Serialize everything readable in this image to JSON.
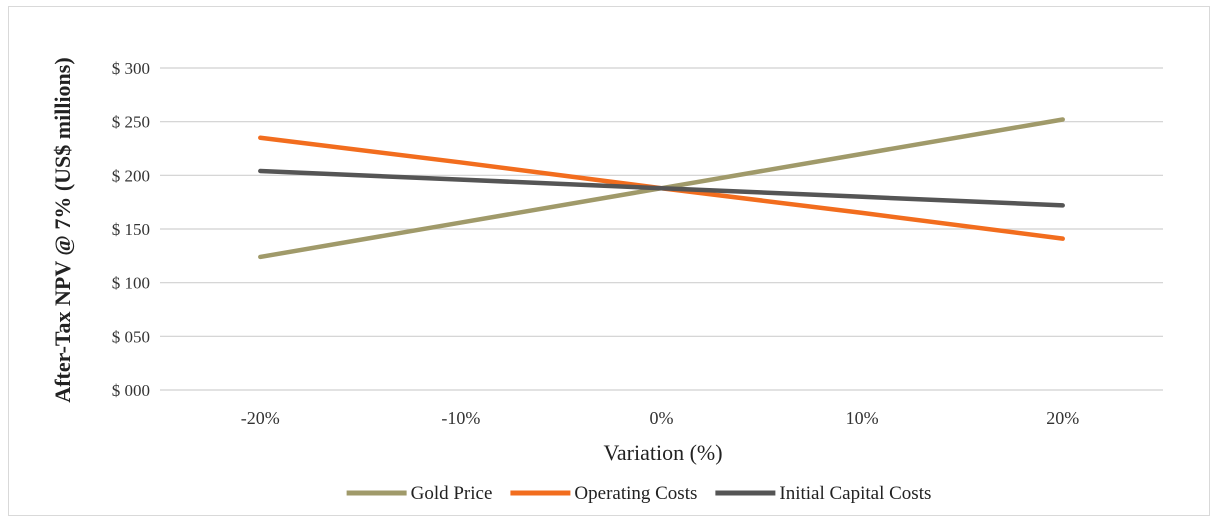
{
  "chart_data": {
    "type": "line",
    "title": "",
    "xlabel": "Variation (%)",
    "ylabel": "After-Tax NPV @ 7%  (US$ millions)",
    "categories": [
      "-20%",
      "-10%",
      "0%",
      "10%",
      "20%"
    ],
    "ylim": [
      0,
      300
    ],
    "yticks": [
      {
        "value": 0,
        "label": "$ 000"
      },
      {
        "value": 50,
        "label": "$ 050"
      },
      {
        "value": 100,
        "label": "$ 100"
      },
      {
        "value": 150,
        "label": "$ 150"
      },
      {
        "value": 200,
        "label": "$ 200"
      },
      {
        "value": 250,
        "label": "$ 250"
      },
      {
        "value": 300,
        "label": "$ 300"
      }
    ],
    "grid": true,
    "legend_position": "bottom",
    "series": [
      {
        "name": "Gold Price",
        "color": "#a09a6a",
        "values": [
          124,
          156,
          188,
          220,
          252
        ]
      },
      {
        "name": "Operating Costs",
        "color": "#f26d1e",
        "values": [
          235,
          212,
          188,
          165,
          141
        ]
      },
      {
        "name": "Initial Capital Costs",
        "color": "#555555",
        "values": [
          204,
          196,
          188,
          180,
          172
        ]
      }
    ]
  }
}
